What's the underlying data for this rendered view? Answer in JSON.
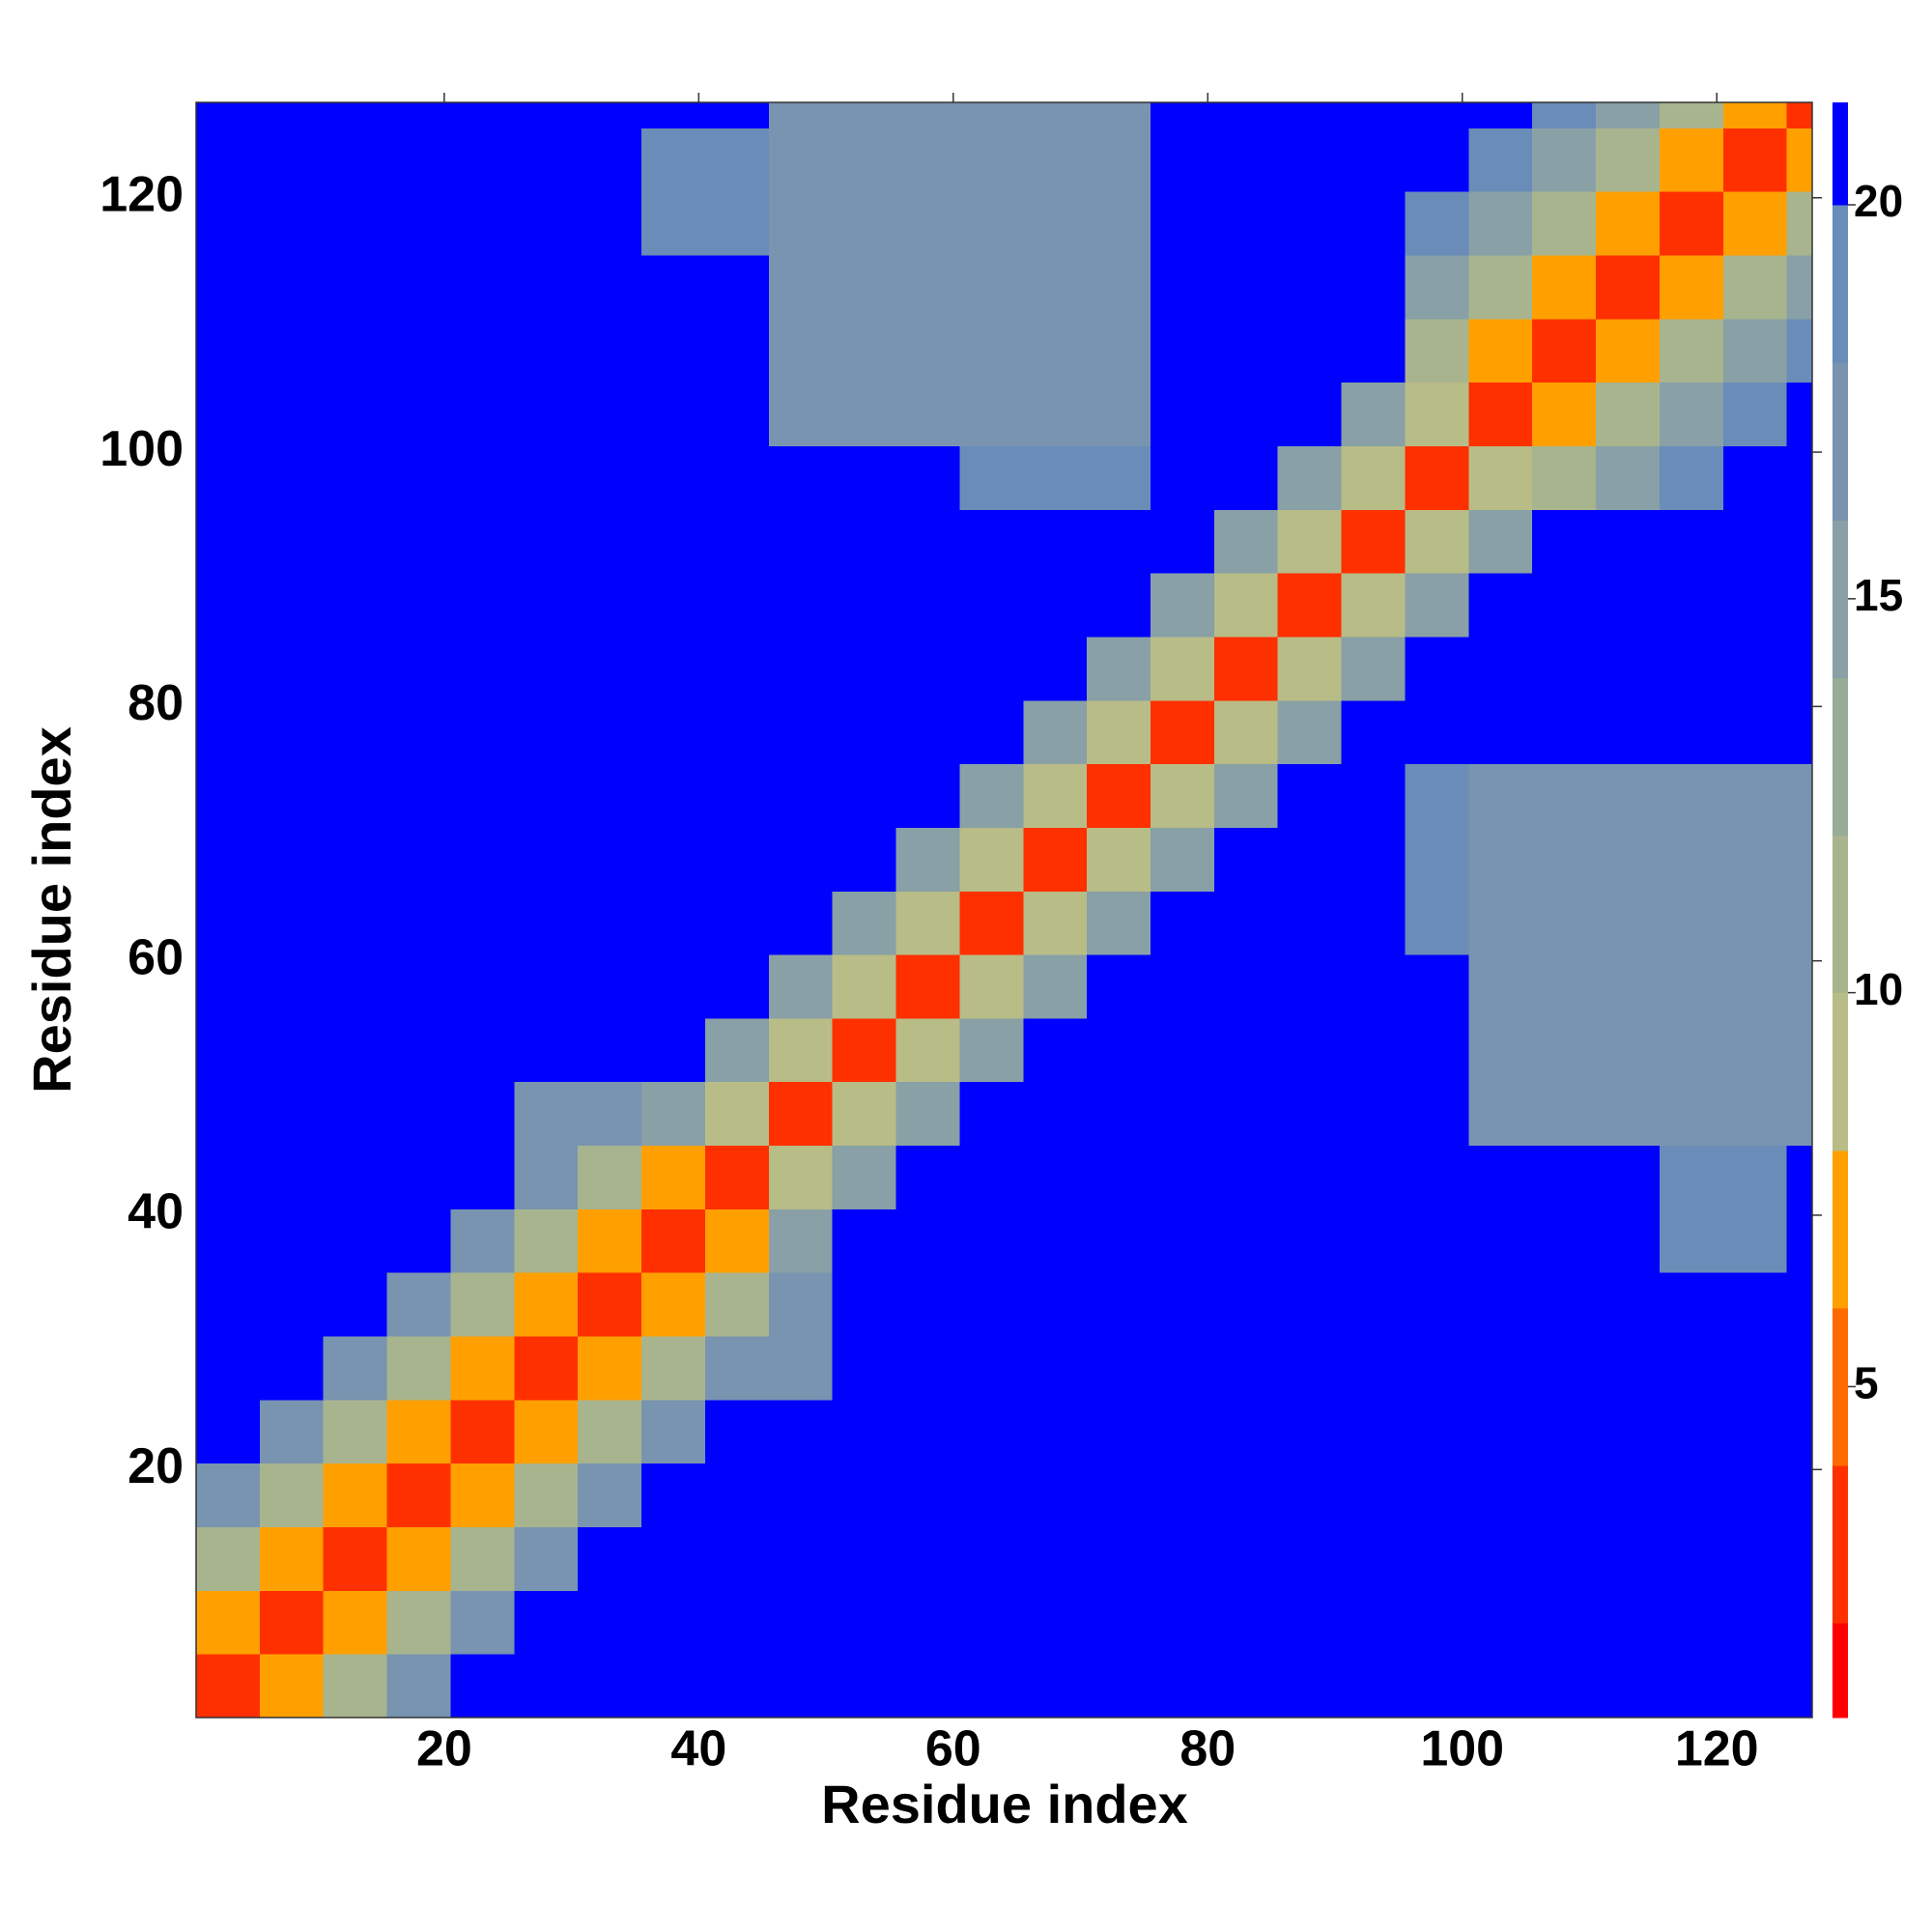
{
  "chart_data": {
    "type": "heatmap",
    "xlabel": "Residue index",
    "ylabel": "Residue index",
    "xbins": [
      0.5,
      5.5,
      10.5,
      15.5,
      20.5,
      25.5,
      30.5,
      35.5,
      40.5,
      45.5,
      50.5,
      55.5,
      60.5,
      65.5,
      70.5,
      75.5,
      80.5,
      85.5,
      90.5,
      95.5,
      100.5,
      105.5,
      110.5,
      115.5,
      120.5,
      125.5,
      127.5
    ],
    "ybins": [
      0.5,
      5.5,
      10.5,
      15.5,
      20.5,
      25.5,
      30.5,
      35.5,
      40.5,
      45.5,
      50.5,
      55.5,
      60.5,
      65.5,
      70.5,
      75.5,
      80.5,
      85.5,
      90.5,
      95.5,
      100.5,
      105.5,
      110.5,
      115.5,
      120.5,
      125.5,
      127.5
    ],
    "z": [
      [
        3,
        7,
        12,
        17,
        21,
        21,
        21,
        21,
        21,
        21,
        21,
        21,
        21,
        21,
        21,
        21,
        21,
        21,
        21,
        21,
        21,
        21,
        21,
        21,
        21,
        21
      ],
      [
        7,
        3,
        7,
        12,
        17,
        21,
        21,
        21,
        21,
        21,
        21,
        21,
        21,
        21,
        21,
        21,
        21,
        21,
        21,
        21,
        21,
        21,
        21,
        21,
        21,
        21
      ],
      [
        12,
        7,
        3,
        7,
        12,
        17,
        21,
        21,
        21,
        21,
        21,
        21,
        21,
        21,
        21,
        21,
        21,
        21,
        21,
        21,
        21,
        21,
        21,
        21,
        21,
        21
      ],
      [
        17,
        12,
        7,
        3,
        7,
        12,
        17,
        21,
        21,
        21,
        21,
        21,
        21,
        21,
        21,
        21,
        21,
        21,
        21,
        21,
        21,
        21,
        21,
        21,
        21,
        21
      ],
      [
        21,
        17,
        12,
        7,
        3,
        7,
        12,
        17,
        21,
        21,
        21,
        21,
        21,
        21,
        21,
        21,
        21,
        21,
        21,
        21,
        21,
        21,
        21,
        21,
        21,
        21
      ],
      [
        21,
        21,
        17,
        12,
        7,
        3,
        7,
        12,
        17,
        18,
        21,
        21,
        21,
        21,
        21,
        21,
        21,
        21,
        21,
        21,
        21,
        21,
        21,
        21,
        21,
        21
      ],
      [
        21,
        21,
        21,
        17,
        12,
        7,
        3,
        7,
        12,
        17,
        21,
        21,
        21,
        21,
        21,
        21,
        21,
        21,
        21,
        21,
        21,
        21,
        21,
        21,
        21,
        21
      ],
      [
        21,
        21,
        21,
        21,
        17,
        12,
        7,
        3,
        7,
        15,
        21,
        21,
        21,
        21,
        21,
        21,
        21,
        21,
        21,
        21,
        21,
        21,
        21,
        19,
        19,
        21
      ],
      [
        21,
        21,
        21,
        21,
        21,
        17,
        12,
        7,
        3,
        9,
        15,
        21,
        21,
        21,
        21,
        21,
        21,
        21,
        21,
        21,
        21,
        21,
        21,
        19,
        19,
        21
      ],
      [
        21,
        21,
        21,
        21,
        21,
        18,
        17,
        15,
        9,
        3,
        9,
        15,
        21,
        21,
        21,
        21,
        21,
        21,
        21,
        21,
        18,
        18,
        18,
        18,
        18,
        18
      ],
      [
        21,
        21,
        21,
        21,
        21,
        21,
        21,
        21,
        15,
        9,
        3,
        9,
        15,
        21,
        21,
        21,
        21,
        21,
        21,
        21,
        18,
        18,
        18,
        18,
        18,
        18
      ],
      [
        21,
        21,
        21,
        21,
        21,
        21,
        21,
        21,
        21,
        15,
        9,
        3,
        9,
        15,
        21,
        21,
        21,
        21,
        21,
        21,
        18,
        18,
        18,
        18,
        18,
        18
      ],
      [
        21,
        21,
        21,
        21,
        21,
        21,
        21,
        21,
        21,
        21,
        15,
        9,
        3,
        9,
        15,
        21,
        21,
        21,
        21,
        19,
        18,
        18,
        18,
        18,
        18,
        18
      ],
      [
        21,
        21,
        21,
        21,
        21,
        21,
        21,
        21,
        21,
        21,
        21,
        15,
        9,
        3,
        9,
        15,
        21,
        21,
        21,
        19,
        18,
        18,
        18,
        18,
        18,
        18
      ],
      [
        21,
        21,
        21,
        21,
        21,
        21,
        21,
        21,
        21,
        21,
        21,
        21,
        15,
        9,
        3,
        9,
        15,
        21,
        21,
        19,
        18,
        18,
        18,
        18,
        18,
        18
      ],
      [
        21,
        21,
        21,
        21,
        21,
        21,
        21,
        21,
        21,
        21,
        21,
        21,
        21,
        15,
        9,
        3,
        9,
        15,
        21,
        21,
        21,
        21,
        21,
        21,
        21,
        21
      ],
      [
        21,
        21,
        21,
        21,
        21,
        21,
        21,
        21,
        21,
        21,
        21,
        21,
        21,
        21,
        15,
        9,
        3,
        9,
        15,
        21,
        21,
        21,
        21,
        21,
        21,
        21
      ],
      [
        21,
        21,
        21,
        21,
        21,
        21,
        21,
        21,
        21,
        21,
        21,
        21,
        21,
        21,
        21,
        15,
        9,
        3,
        9,
        15,
        21,
        21,
        21,
        21,
        21,
        21
      ],
      [
        21,
        21,
        21,
        21,
        21,
        21,
        21,
        21,
        21,
        21,
        21,
        21,
        21,
        21,
        21,
        21,
        15,
        9,
        3,
        9,
        15,
        21,
        21,
        21,
        21,
        21
      ],
      [
        21,
        21,
        21,
        21,
        21,
        21,
        21,
        21,
        21,
        21,
        21,
        21,
        19,
        19,
        19,
        21,
        21,
        15,
        9,
        3,
        9,
        12,
        16,
        19,
        21,
        21
      ],
      [
        21,
        21,
        21,
        21,
        21,
        21,
        21,
        21,
        21,
        18,
        18,
        18,
        18,
        18,
        18,
        21,
        21,
        21,
        15,
        9,
        3,
        8,
        12,
        16,
        19,
        21
      ],
      [
        21,
        21,
        21,
        21,
        21,
        21,
        21,
        21,
        21,
        18,
        18,
        18,
        18,
        18,
        18,
        21,
        21,
        21,
        21,
        12,
        8,
        3,
        8,
        12,
        16,
        19
      ],
      [
        21,
        21,
        21,
        21,
        21,
        21,
        21,
        21,
        21,
        18,
        18,
        18,
        18,
        18,
        18,
        21,
        21,
        21,
        21,
        16,
        12,
        8,
        3,
        8,
        12,
        16
      ],
      [
        21,
        21,
        21,
        21,
        21,
        21,
        21,
        19,
        19,
        18,
        18,
        18,
        18,
        18,
        18,
        21,
        21,
        21,
        21,
        19,
        16,
        12,
        8,
        3,
        8,
        12
      ],
      [
        21,
        21,
        21,
        21,
        21,
        21,
        21,
        19,
        19,
        18,
        18,
        18,
        18,
        18,
        18,
        21,
        21,
        21,
        21,
        21,
        19,
        16,
        12,
        8,
        3,
        8
      ],
      [
        21,
        21,
        21,
        21,
        21,
        21,
        21,
        21,
        21,
        18,
        18,
        18,
        18,
        18,
        18,
        21,
        21,
        21,
        21,
        21,
        21,
        19,
        16,
        12,
        8,
        3
      ]
    ],
    "xlim": [
      0.5,
      127.5
    ],
    "ylim": [
      0.5,
      127.5
    ],
    "xticks": [
      20,
      40,
      60,
      80,
      100,
      120
    ],
    "yticks": [
      20,
      40,
      60,
      80,
      100,
      120
    ],
    "colorbar": {
      "clim": [
        0.8,
        21.3
      ],
      "ticks": [
        5,
        10,
        15,
        20
      ],
      "levels": [
        0.8,
        2,
        4,
        6,
        8,
        10,
        12,
        14,
        16,
        18,
        20,
        21.3
      ],
      "colors": [
        "#ff0000",
        "#ff3000",
        "#ff6a00",
        "#ffa000",
        "#b8bc86",
        "#a8b48e",
        "#98aa98",
        "#88a0a6",
        "#7894b0",
        "#6a8cb8",
        "#0000ff"
      ]
    }
  }
}
